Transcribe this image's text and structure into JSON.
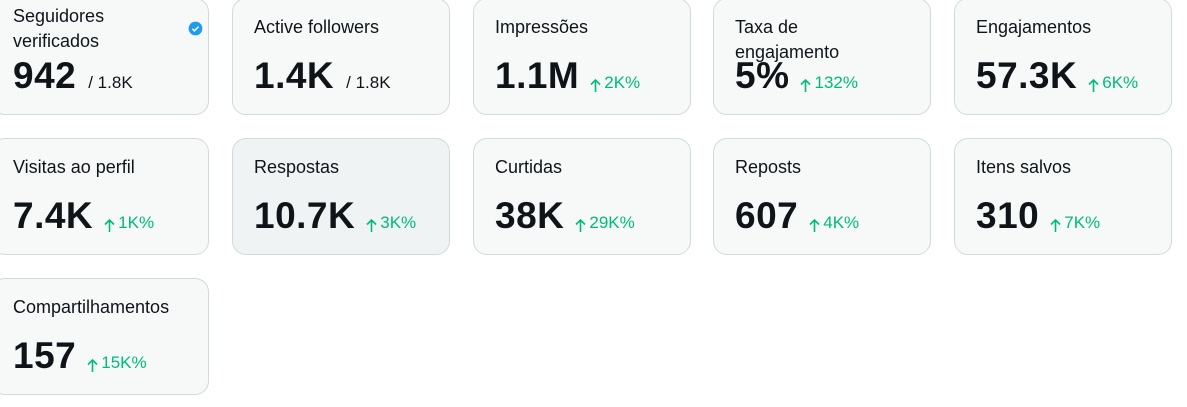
{
  "cards": [
    {
      "label": "Seguidores verificados",
      "value": "942",
      "total": "/ 1.8K"
    },
    {
      "label": "Active followers",
      "value": "1.4K",
      "total": "/ 1.8K"
    },
    {
      "label": "Impressões",
      "value": "1.1M",
      "change": "2K%"
    },
    {
      "label": "Taxa de engajamento",
      "value": "5%",
      "change": "132%"
    },
    {
      "label": "Engajamentos",
      "value": "57.3K",
      "change": "6K%"
    },
    {
      "label": "Visitas ao perfil",
      "value": "7.4K",
      "change": "1K%"
    },
    {
      "label": "Respostas",
      "value": "10.7K",
      "change": "3K%"
    },
    {
      "label": "Curtidas",
      "value": "38K",
      "change": "29K%"
    },
    {
      "label": "Reposts",
      "value": "607",
      "change": "4K%"
    },
    {
      "label": "Itens salvos",
      "value": "310",
      "change": "7K%"
    },
    {
      "label": "Compartilhamentos",
      "value": "157",
      "change": "15K%"
    }
  ]
}
